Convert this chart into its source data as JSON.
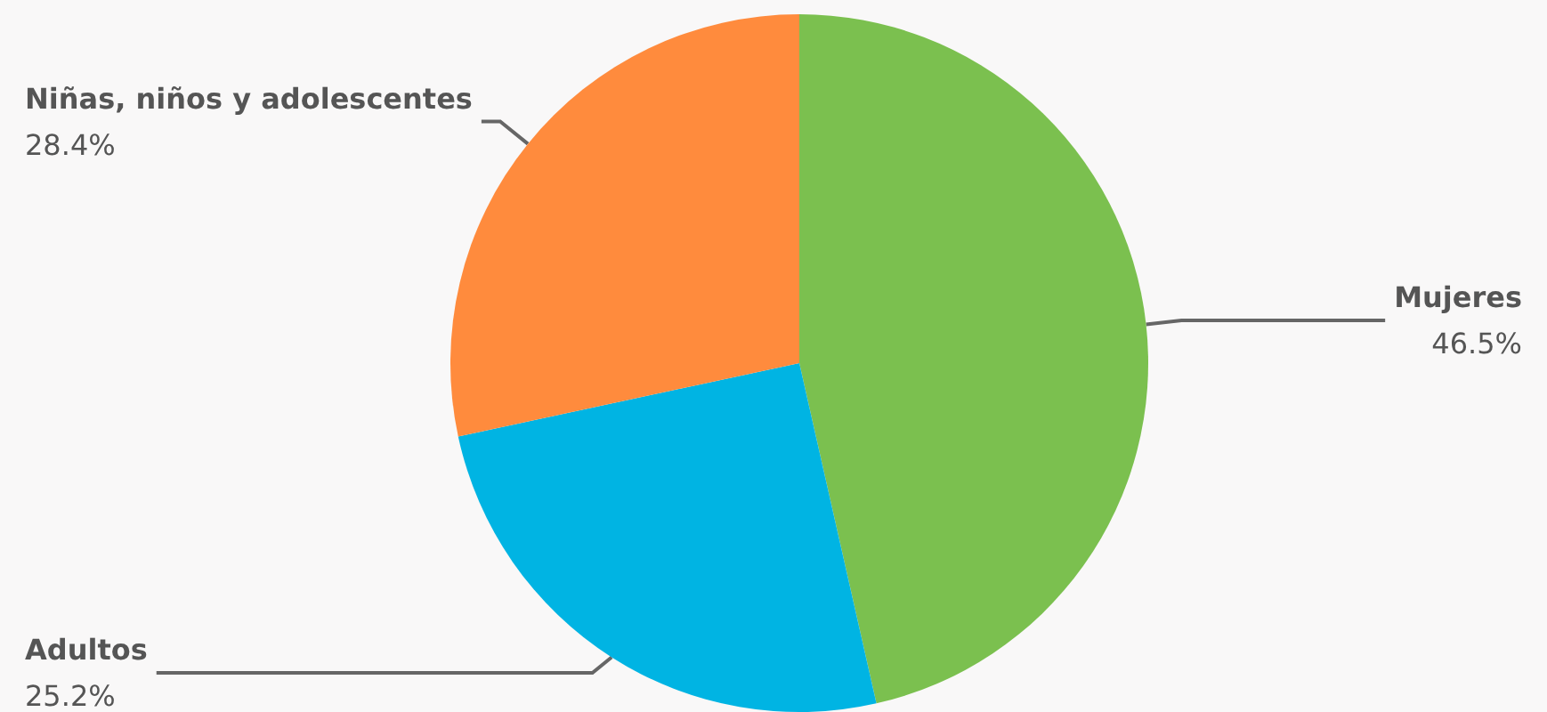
{
  "chart_data": {
    "type": "pie",
    "categories": [
      "Mujeres",
      "Adultos",
      "Niñas, niños y adolescentes"
    ],
    "values": [
      46.5,
      25.2,
      28.4
    ],
    "colors": [
      "#7bc04f",
      "#00b4e3",
      "#ff8b3d"
    ],
    "value_labels": [
      "46.5%",
      "25.2%",
      "28.4%"
    ],
    "legend": false
  }
}
